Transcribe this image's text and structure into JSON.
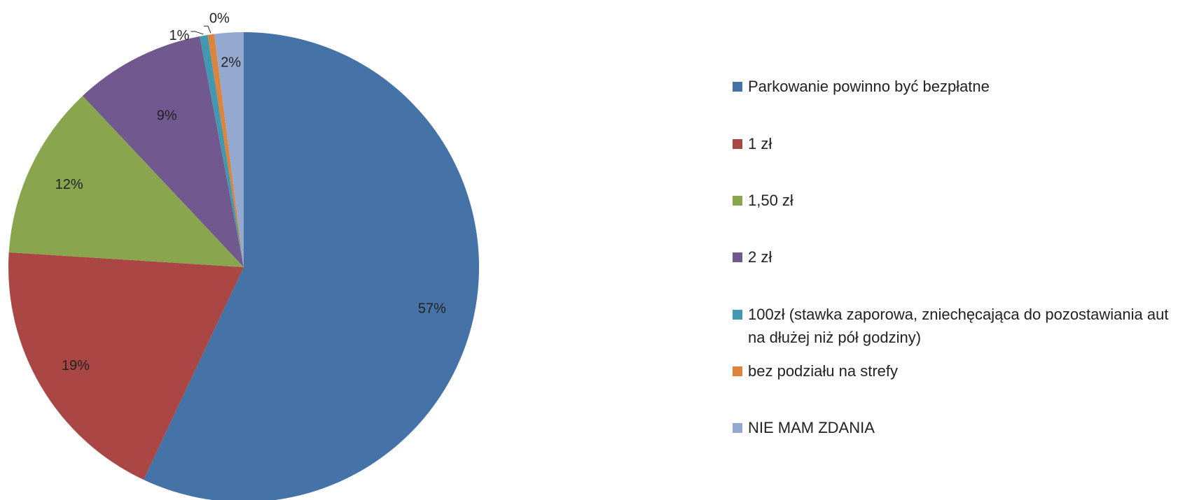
{
  "chart_data": {
    "type": "pie",
    "start_angle": "12 o'clock, clockwise",
    "slices": [
      {
        "name": "Parkowanie powinno być bezpłatne",
        "value": 57,
        "label": "57%",
        "color": "#4572A7"
      },
      {
        "name": "1 zł",
        "value": 19,
        "label": "19%",
        "color": "#AA4643"
      },
      {
        "name": "1,50 zł",
        "value": 12,
        "label": "12%",
        "color": "#89A54E"
      },
      {
        "name": "2 zł",
        "value": 9,
        "label": "9%",
        "color": "#71588F"
      },
      {
        "name": "100zł (stawka zaporowa, zniechęcająca do pozostawiania aut na dłużej niż pół godziny)",
        "value": 0.55,
        "label": "1%",
        "color": "#4198AF"
      },
      {
        "name": "bez podziału na strefy",
        "value": 0.45,
        "label": "0%",
        "color": "#DB843D"
      },
      {
        "name": "NIE MAM ZDANIA",
        "value": 2,
        "label": "2%",
        "color": "#93A9CF"
      }
    ],
    "legend_position": "right"
  }
}
